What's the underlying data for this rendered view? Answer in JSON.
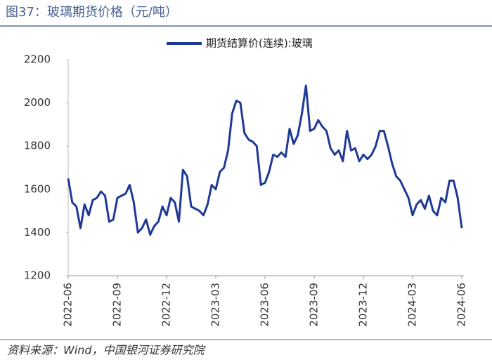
{
  "title": "图37：玻璃期货价格（元/吨）",
  "source": "资料来源：Wind，中国银河证券研究院",
  "chart_data": {
    "type": "line",
    "categories": [
      "2022-06",
      null,
      null,
      null,
      null,
      null,
      null,
      null,
      null,
      null,
      null,
      null,
      "2022-09",
      null,
      null,
      null,
      null,
      null,
      null,
      null,
      null,
      null,
      null,
      null,
      "2022-12",
      null,
      null,
      null,
      null,
      null,
      null,
      null,
      null,
      null,
      null,
      null,
      "2023-03",
      null,
      null,
      null,
      null,
      null,
      null,
      null,
      null,
      null,
      null,
      null,
      "2023-06",
      null,
      null,
      null,
      null,
      null,
      null,
      null,
      null,
      null,
      null,
      null,
      "2023-09",
      null,
      null,
      null,
      null,
      null,
      null,
      null,
      null,
      null,
      null,
      null,
      "2023-12",
      null,
      null,
      null,
      null,
      null,
      null,
      null,
      null,
      null,
      null,
      null,
      "2024-03",
      null,
      null,
      null,
      null,
      null,
      null,
      null,
      null,
      null,
      null,
      null,
      "2024-06"
    ],
    "series": [
      {
        "name": "期货结算价(连续):玻璃",
        "color": "#1f3a96",
        "values": [
          1650,
          1540,
          1520,
          1420,
          1530,
          1480,
          1550,
          1560,
          1590,
          1570,
          1450,
          1460,
          1560,
          1570,
          1580,
          1620,
          1540,
          1400,
          1420,
          1460,
          1390,
          1430,
          1450,
          1520,
          1480,
          1560,
          1540,
          1450,
          1690,
          1660,
          1520,
          1510,
          1500,
          1480,
          1530,
          1620,
          1600,
          1680,
          1700,
          1780,
          1950,
          2010,
          2000,
          1860,
          1830,
          1820,
          1800,
          1620,
          1630,
          1680,
          1760,
          1750,
          1770,
          1750,
          1880,
          1810,
          1850,
          1950,
          2080,
          1870,
          1880,
          1920,
          1890,
          1870,
          1790,
          1760,
          1780,
          1730,
          1870,
          1780,
          1790,
          1730,
          1760,
          1740,
          1760,
          1800,
          1870,
          1870,
          1800,
          1720,
          1660,
          1640,
          1600,
          1560,
          1480,
          1530,
          1550,
          1510,
          1570,
          1500,
          1480,
          1560,
          1540,
          1640,
          1640,
          1560,
          1420
        ]
      }
    ],
    "ylim": [
      1200,
      2200
    ],
    "yticks": [
      1200,
      1400,
      1600,
      1800,
      2000,
      2200
    ],
    "legend": "top"
  }
}
